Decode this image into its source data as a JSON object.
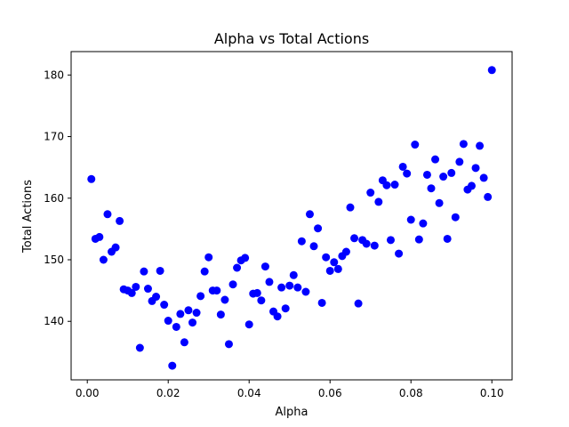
{
  "chart_data": {
    "type": "scatter",
    "title": "Alpha vs Total Actions",
    "xlabel": "Alpha",
    "ylabel": "Total Actions",
    "xlim": [
      -0.004,
      0.105
    ],
    "ylim": [
      130.5,
      183.8
    ],
    "xticks": [
      0.0,
      0.02,
      0.04,
      0.06,
      0.08,
      0.1
    ],
    "xtick_labels": [
      "0.00",
      "0.02",
      "0.04",
      "0.06",
      "0.08",
      "0.10"
    ],
    "yticks": [
      140,
      150,
      160,
      170,
      180
    ],
    "ytick_labels": [
      "140",
      "150",
      "160",
      "170",
      "180"
    ],
    "grid": false,
    "marker_color": "#0000ff",
    "series": [
      {
        "points": [
          [
            0.001,
            163.1
          ],
          [
            0.002,
            153.4
          ],
          [
            0.003,
            153.7
          ],
          [
            0.004,
            150.0
          ],
          [
            0.005,
            157.4
          ],
          [
            0.006,
            151.3
          ],
          [
            0.007,
            152.0
          ],
          [
            0.008,
            156.3
          ],
          [
            0.009,
            145.2
          ],
          [
            0.01,
            145.0
          ],
          [
            0.011,
            144.6
          ],
          [
            0.012,
            145.6
          ],
          [
            0.013,
            135.7
          ],
          [
            0.014,
            148.1
          ],
          [
            0.015,
            145.3
          ],
          [
            0.016,
            143.3
          ],
          [
            0.017,
            144.0
          ],
          [
            0.018,
            148.2
          ],
          [
            0.019,
            142.7
          ],
          [
            0.02,
            140.1
          ],
          [
            0.021,
            132.8
          ],
          [
            0.022,
            139.1
          ],
          [
            0.023,
            141.2
          ],
          [
            0.024,
            136.6
          ],
          [
            0.025,
            141.8
          ],
          [
            0.026,
            139.8
          ],
          [
            0.027,
            141.4
          ],
          [
            0.028,
            144.1
          ],
          [
            0.029,
            148.1
          ],
          [
            0.03,
            150.4
          ],
          [
            0.031,
            145.0
          ],
          [
            0.032,
            145.0
          ],
          [
            0.033,
            141.1
          ],
          [
            0.034,
            143.5
          ],
          [
            0.035,
            136.3
          ],
          [
            0.036,
            146.0
          ],
          [
            0.037,
            148.7
          ],
          [
            0.038,
            149.9
          ],
          [
            0.039,
            150.3
          ],
          [
            0.04,
            139.5
          ],
          [
            0.041,
            144.5
          ],
          [
            0.042,
            144.6
          ],
          [
            0.043,
            143.4
          ],
          [
            0.044,
            148.9
          ],
          [
            0.045,
            146.4
          ],
          [
            0.046,
            141.6
          ],
          [
            0.047,
            140.8
          ],
          [
            0.048,
            145.5
          ],
          [
            0.049,
            142.1
          ],
          [
            0.05,
            145.8
          ],
          [
            0.051,
            147.5
          ],
          [
            0.052,
            145.5
          ],
          [
            0.053,
            153.0
          ],
          [
            0.054,
            144.8
          ],
          [
            0.055,
            157.4
          ],
          [
            0.056,
            152.2
          ],
          [
            0.057,
            155.1
          ],
          [
            0.058,
            143.0
          ],
          [
            0.059,
            150.4
          ],
          [
            0.06,
            148.2
          ],
          [
            0.061,
            149.6
          ],
          [
            0.062,
            148.5
          ],
          [
            0.063,
            150.6
          ],
          [
            0.064,
            151.3
          ],
          [
            0.065,
            158.5
          ],
          [
            0.066,
            153.5
          ],
          [
            0.067,
            142.9
          ],
          [
            0.068,
            153.2
          ],
          [
            0.069,
            152.6
          ],
          [
            0.07,
            160.9
          ],
          [
            0.071,
            152.3
          ],
          [
            0.072,
            159.4
          ],
          [
            0.073,
            162.9
          ],
          [
            0.074,
            162.1
          ],
          [
            0.075,
            153.2
          ],
          [
            0.076,
            162.2
          ],
          [
            0.077,
            151.0
          ],
          [
            0.078,
            165.1
          ],
          [
            0.079,
            164.0
          ],
          [
            0.08,
            156.5
          ],
          [
            0.081,
            168.7
          ],
          [
            0.082,
            153.3
          ],
          [
            0.083,
            155.9
          ],
          [
            0.084,
            163.8
          ],
          [
            0.085,
            161.6
          ],
          [
            0.086,
            166.3
          ],
          [
            0.087,
            159.2
          ],
          [
            0.088,
            163.5
          ],
          [
            0.089,
            153.4
          ],
          [
            0.09,
            164.1
          ],
          [
            0.091,
            156.9
          ],
          [
            0.092,
            165.9
          ],
          [
            0.093,
            168.8
          ],
          [
            0.094,
            161.4
          ],
          [
            0.095,
            162.0
          ],
          [
            0.096,
            164.9
          ],
          [
            0.097,
            168.5
          ],
          [
            0.098,
            163.3
          ],
          [
            0.099,
            160.2
          ],
          [
            0.1,
            180.8
          ]
        ]
      }
    ]
  }
}
